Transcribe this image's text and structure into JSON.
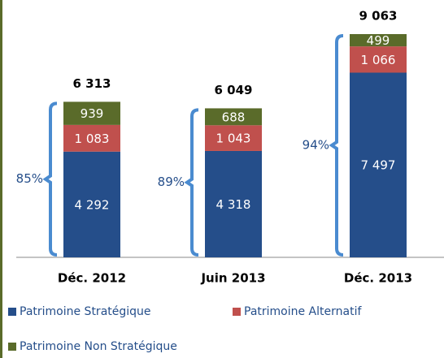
{
  "chart_data": {
    "type": "stacked_bar",
    "categories": [
      "Déc. 2012",
      "Juin 2013",
      "Déc. 2013"
    ],
    "series": [
      {
        "name": "Patrimoine Stratégique",
        "color": "#254e8a",
        "values": [
          4292,
          4318,
          7497
        ],
        "value_labels": [
          "4 292",
          "4 318",
          "7 497"
        ]
      },
      {
        "name": "Patrimoine Alternatif",
        "color": "#c0504d",
        "values": [
          1083,
          1043,
          1066
        ],
        "value_labels": [
          "1 083",
          "1 043",
          "1 066"
        ]
      },
      {
        "name": "Patrimoine Non Stratégique",
        "color": "#5a6b2a",
        "values": [
          939,
          688,
          499
        ],
        "value_labels": [
          "939",
          "688",
          "499"
        ]
      }
    ],
    "total_labels": [
      "6 313",
      "6 049",
      "9 063"
    ],
    "bracket_labels": [
      "85%",
      "89%",
      "94%"
    ],
    "bracket_color": "#4a8bd0"
  }
}
